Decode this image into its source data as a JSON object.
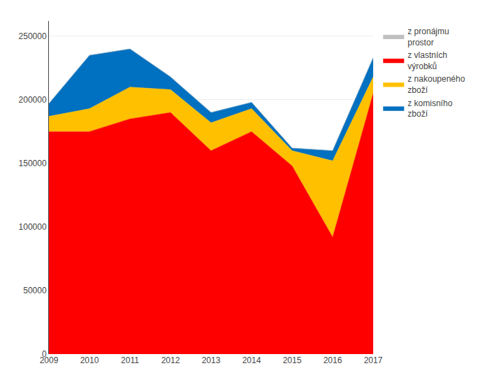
{
  "chart_data": {
    "type": "area",
    "stacked": true,
    "x": [
      2009,
      2010,
      2011,
      2012,
      2013,
      2014,
      2015,
      2016,
      2017
    ],
    "series": [
      {
        "name": "z vlastních\nvýrobků",
        "color": "#FF0000",
        "values": [
          175000,
          175000,
          185000,
          190000,
          160000,
          175000,
          148000,
          92000,
          205000
        ]
      },
      {
        "name": "z nakoupeného\nzboží",
        "color": "#FFC000",
        "values": [
          12000,
          18000,
          25000,
          18000,
          22000,
          18000,
          12000,
          60000,
          13000
        ]
      },
      {
        "name": "z komisního\nzboží",
        "color": "#0070C0",
        "values": [
          10000,
          42000,
          30000,
          10000,
          8000,
          5000,
          2000,
          8000,
          15000
        ]
      },
      {
        "name": "z pronájmu\nprostor",
        "color": "#C0C0C0",
        "values": [
          0,
          0,
          0,
          0,
          0,
          0,
          0,
          0,
          0
        ]
      }
    ],
    "xlim": [
      2009,
      2017
    ],
    "xticks": [
      2009,
      2010,
      2011,
      2012,
      2013,
      2014,
      2015,
      2016,
      2017
    ],
    "ylim": [
      0,
      262000
    ],
    "yticks": [
      0,
      50000,
      100000,
      150000,
      200000,
      250000
    ],
    "grid": true,
    "legend": "right"
  }
}
